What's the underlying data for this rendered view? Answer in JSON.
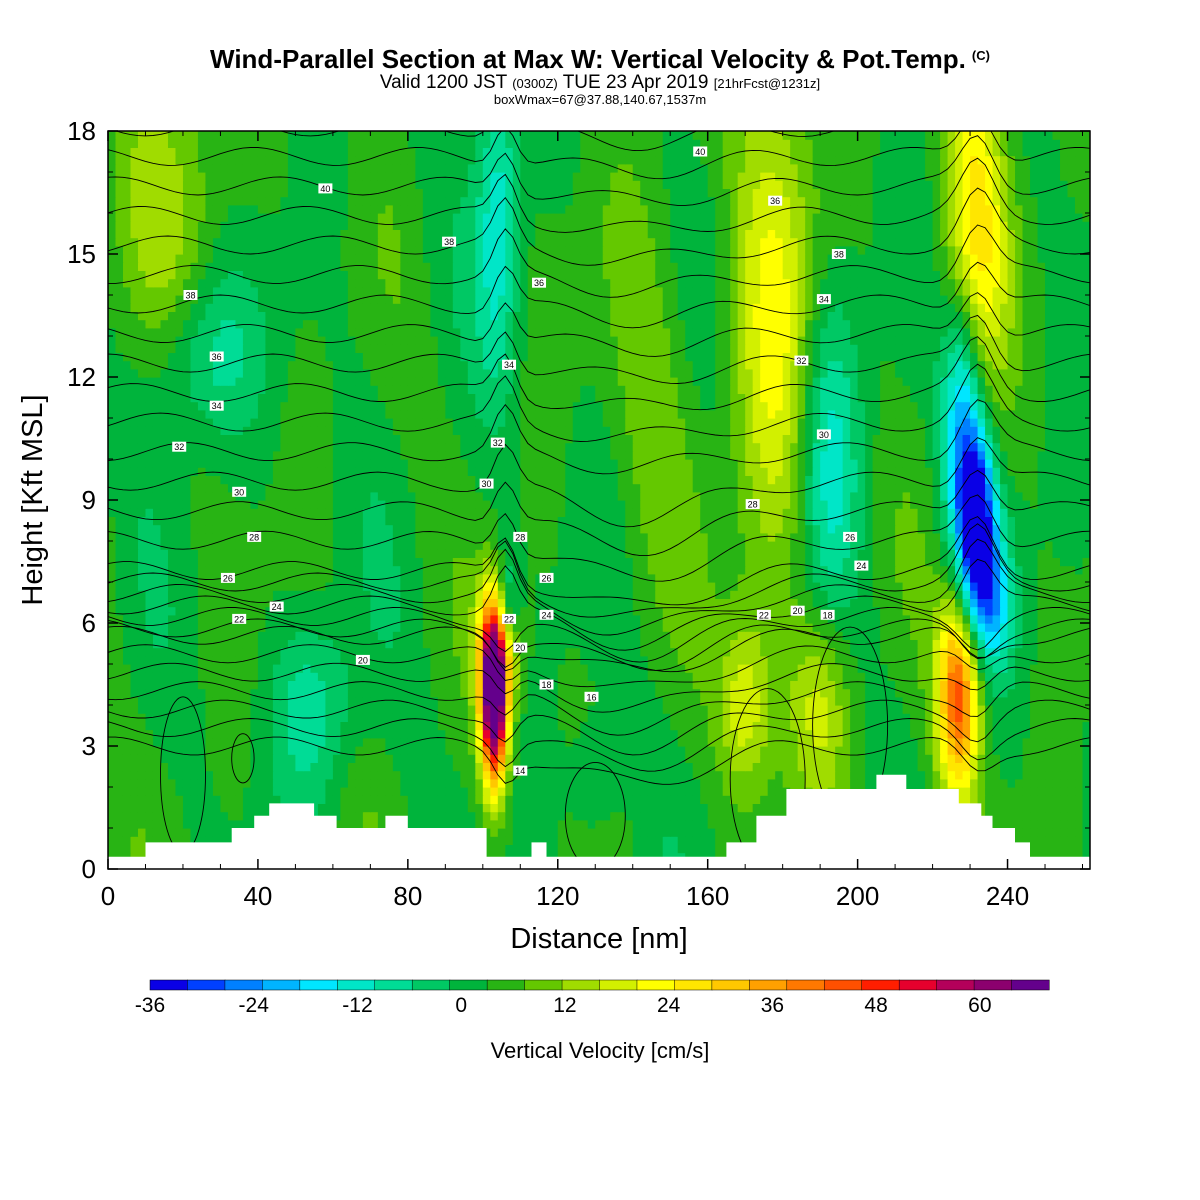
{
  "header": {
    "title": "Wind-Parallel Section at Max W: Vertical Velocity & Pot.Temp.",
    "title_mark": "(C)",
    "valid_prefix": "Valid 1200 JST",
    "valid_utc": "(0300Z)",
    "valid_date": "TUE 23 Apr 2019",
    "fcst": "[21hrFcst@1231z]",
    "box_info": "boxWmax=67@37.88,140.67,1537m"
  },
  "chart_data": {
    "type": "heatmap",
    "xlabel": "Distance [nm]",
    "ylabel": "Height [Kft MSL]",
    "xlim": [
      0,
      262
    ],
    "ylim": [
      0,
      18
    ],
    "x_ticks": [
      0,
      40,
      80,
      120,
      160,
      200,
      240
    ],
    "y_ticks": [
      0,
      3,
      6,
      9,
      12,
      15,
      18
    ],
    "colorbar": {
      "label": "Vertical Velocity [cm/s]",
      "min": -36,
      "max": 68,
      "step": 4,
      "tick_values": [
        -36,
        -24,
        -12,
        0,
        12,
        24,
        36,
        48,
        60
      ],
      "colors": [
        "#0a00e6",
        "#0040ff",
        "#0080ff",
        "#00b4ff",
        "#00e6ff",
        "#00e6c8",
        "#00dc96",
        "#00c864",
        "#00b43c",
        "#28b414",
        "#64c800",
        "#a0dc00",
        "#d2f000",
        "#ffff00",
        "#ffe600",
        "#ffc800",
        "#ffa000",
        "#ff7800",
        "#ff5000",
        "#ff1e00",
        "#e6002d",
        "#b4005a",
        "#8c006e",
        "#64008c"
      ]
    },
    "cells": [
      {
        "x": 103,
        "y": 4.2,
        "w": 68,
        "sx": 2.5,
        "sy": 1.5
      },
      {
        "x": 104,
        "y": 5.5,
        "w": 20,
        "sx": 4,
        "sy": 1.2
      },
      {
        "x": 227,
        "y": 4.3,
        "w": 38,
        "sx": 4,
        "sy": 1.7
      },
      {
        "x": 231,
        "y": 15.5,
        "w": 22,
        "sx": 6,
        "sy": 3
      },
      {
        "x": 178,
        "y": 13,
        "w": 16,
        "sx": 8,
        "sy": 5
      },
      {
        "x": 232,
        "y": 8.3,
        "w": -36,
        "sx": 3.5,
        "sy": 1.6
      },
      {
        "x": 228,
        "y": 11,
        "w": -24,
        "sx": 4,
        "sy": 2.5
      },
      {
        "x": 236,
        "y": 6.5,
        "w": -16,
        "sx": 4,
        "sy": 1.2
      },
      {
        "x": 106,
        "y": 6.5,
        "w": -18,
        "sx": 2.5,
        "sy": 0.9
      },
      {
        "x": 104,
        "y": 16,
        "w": -14,
        "sx": 4,
        "sy": 3
      },
      {
        "x": 192,
        "y": 10,
        "w": -14,
        "sx": 6,
        "sy": 3
      },
      {
        "x": 55,
        "y": 4,
        "w": -10,
        "sx": 8,
        "sy": 1.5
      },
      {
        "x": 25,
        "y": 12.5,
        "w": -10,
        "sx": 10,
        "sy": 1.5
      },
      {
        "x": 170,
        "y": 4,
        "w": 14,
        "sx": 5,
        "sy": 1.5
      },
      {
        "x": 190,
        "y": 4,
        "w": 12,
        "sx": 6,
        "sy": 1.6
      },
      {
        "x": 15,
        "y": 16.5,
        "w": 8,
        "sx": 12,
        "sy": 3
      },
      {
        "x": 130,
        "y": 2,
        "w": -6,
        "sx": 5,
        "sy": 1.2
      },
      {
        "x": 145,
        "y": 12,
        "w": 6,
        "sx": 8,
        "sy": 4
      }
    ],
    "theta_levels": [
      14,
      16,
      18,
      20,
      22,
      24,
      26,
      28,
      30,
      32,
      34,
      36,
      38,
      40
    ],
    "contour_labels": [
      {
        "text": "40",
        "x": 58,
        "y": 16.6
      },
      {
        "text": "38",
        "x": 91,
        "y": 15.3
      },
      {
        "text": "36",
        "x": 115,
        "y": 14.3
      },
      {
        "text": "34",
        "x": 107,
        "y": 12.3
      },
      {
        "text": "32",
        "x": 104,
        "y": 10.4
      },
      {
        "text": "30",
        "x": 101,
        "y": 9.4
      },
      {
        "text": "28",
        "x": 110,
        "y": 8.1
      },
      {
        "text": "26",
        "x": 117,
        "y": 7.1
      },
      {
        "text": "24",
        "x": 117,
        "y": 6.2
      },
      {
        "text": "22",
        "x": 107,
        "y": 6.1
      },
      {
        "text": "20",
        "x": 110,
        "y": 5.4
      },
      {
        "text": "18",
        "x": 117,
        "y": 4.5
      },
      {
        "text": "16",
        "x": 129,
        "y": 4.2
      },
      {
        "text": "14",
        "x": 110,
        "y": 2.4
      },
      {
        "text": "38",
        "x": 22,
        "y": 14.0
      },
      {
        "text": "36",
        "x": 29,
        "y": 12.5
      },
      {
        "text": "34",
        "x": 29,
        "y": 11.3
      },
      {
        "text": "32",
        "x": 19,
        "y": 10.3
      },
      {
        "text": "30",
        "x": 35,
        "y": 9.2
      },
      {
        "text": "28",
        "x": 39,
        "y": 8.1
      },
      {
        "text": "26",
        "x": 32,
        "y": 7.1
      },
      {
        "text": "24",
        "x": 45,
        "y": 6.4
      },
      {
        "text": "22",
        "x": 35,
        "y": 6.1
      },
      {
        "text": "20",
        "x": 68,
        "y": 5.1
      },
      {
        "text": "40",
        "x": 158,
        "y": 17.5
      },
      {
        "text": "36",
        "x": 178,
        "y": 16.3
      },
      {
        "text": "38",
        "x": 195,
        "y": 15.0
      },
      {
        "text": "34",
        "x": 191,
        "y": 13.9
      },
      {
        "text": "32",
        "x": 185,
        "y": 12.4
      },
      {
        "text": "30",
        "x": 191,
        "y": 10.6
      },
      {
        "text": "28",
        "x": 172,
        "y": 8.9
      },
      {
        "text": "26",
        "x": 198,
        "y": 8.1
      },
      {
        "text": "24",
        "x": 201,
        "y": 7.4
      },
      {
        "text": "22",
        "x": 175,
        "y": 6.2
      },
      {
        "text": "20",
        "x": 184,
        "y": 6.3
      },
      {
        "text": "18",
        "x": 192,
        "y": 6.2
      }
    ],
    "terrain": [
      [
        0,
        0.3
      ],
      [
        10,
        0.3
      ],
      [
        10,
        0.65
      ],
      [
        33,
        0.65
      ],
      [
        33,
        1.0
      ],
      [
        39,
        1.0
      ],
      [
        39,
        1.3
      ],
      [
        43,
        1.3
      ],
      [
        43,
        1.6
      ],
      [
        55,
        1.6
      ],
      [
        55,
        1.3
      ],
      [
        61,
        1.3
      ],
      [
        61,
        1.0
      ],
      [
        74,
        1.0
      ],
      [
        74,
        1.3
      ],
      [
        80,
        1.3
      ],
      [
        80,
        1.0
      ],
      [
        101,
        1.0
      ],
      [
        101,
        0.3
      ],
      [
        113,
        0.3
      ],
      [
        113,
        0.65
      ],
      [
        117,
        0.65
      ],
      [
        117,
        0.3
      ],
      [
        165,
        0.3
      ],
      [
        165,
        0.65
      ],
      [
        173,
        0.65
      ],
      [
        173,
        1.3
      ],
      [
        181,
        1.3
      ],
      [
        181,
        1.95
      ],
      [
        205,
        1.95
      ],
      [
        205,
        2.3
      ],
      [
        213,
        2.3
      ],
      [
        213,
        1.95
      ],
      [
        227,
        1.95
      ],
      [
        227,
        1.6
      ],
      [
        233,
        1.6
      ],
      [
        233,
        1.3
      ],
      [
        236,
        1.3
      ],
      [
        236,
        1.0
      ],
      [
        242,
        1.0
      ],
      [
        242,
        0.65
      ],
      [
        246,
        0.65
      ],
      [
        246,
        0.3
      ],
      [
        262,
        0.3
      ]
    ]
  }
}
